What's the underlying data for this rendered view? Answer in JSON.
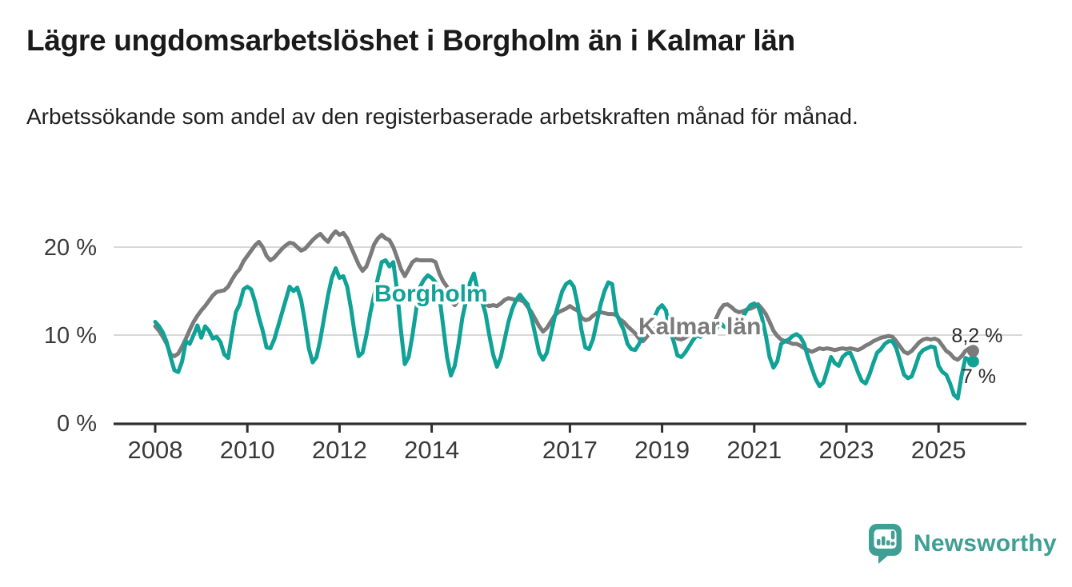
{
  "header": {
    "title": "Lägre ungdomsarbetslöshet i Borgholm än i Kalmar län",
    "subtitle": "Arbetssökande som andel av den registerbaserade arbetskraften månad för månad."
  },
  "footer": {
    "brand": "Newsworthy",
    "brand_icon": "bar-chart-speech-bubble-icon",
    "brand_color": "#3F9F94"
  },
  "chart_data": {
    "type": "line",
    "unit": "%",
    "frequency": "monthly",
    "x_start_year": 2008,
    "x_start_month": 1,
    "x_end_year": 2025,
    "x_end_month": 10,
    "x_tick_years": [
      2008,
      2010,
      2012,
      2014,
      2017,
      2019,
      2021,
      2023,
      2025
    ],
    "y_ticks": [
      {
        "v": 0,
        "label": "0 %"
      },
      {
        "v": 10,
        "label": "10 %"
      },
      {
        "v": 20,
        "label": "20 %"
      }
    ],
    "ylim": [
      0,
      23
    ],
    "grid": "horizontal-light",
    "legend": "inline-annotations",
    "colors": {
      "borgholm": "#10A296",
      "kalmar_lan": "#7B7B7B",
      "axis": "#2f2f2f",
      "gridline": "#d8d8d8",
      "end_label_text": "#2b2b2b"
    },
    "series": [
      {
        "name": "Kalmar län",
        "color": "#7B7B7B",
        "end_label": "8,2 %",
        "end_value": 8.2,
        "values": [
          11.0,
          10.5,
          9.8,
          9.0,
          7.8,
          7.6,
          7.9,
          8.7,
          9.6,
          10.6,
          11.5,
          12.2,
          12.8,
          13.3,
          13.9,
          14.5,
          14.9,
          15.0,
          15.1,
          15.5,
          16.3,
          17.0,
          17.5,
          18.4,
          19.0,
          19.6,
          20.2,
          20.6,
          20.0,
          19.0,
          18.5,
          18.8,
          19.3,
          19.8,
          20.2,
          20.5,
          20.4,
          20.0,
          19.6,
          19.8,
          20.3,
          20.8,
          21.2,
          21.5,
          21.0,
          20.6,
          21.3,
          21.8,
          21.4,
          21.6,
          21.0,
          20.0,
          19.0,
          18.0,
          17.3,
          17.8,
          19.0,
          20.3,
          21.0,
          21.4,
          21.0,
          20.8,
          20.0,
          18.8,
          17.5,
          16.7,
          17.5,
          18.3,
          18.6,
          18.5,
          18.5,
          18.5,
          18.5,
          18.3,
          17.0,
          16.1,
          15.5,
          13.9,
          13.4,
          14.0,
          14.2,
          14.0,
          14.2,
          14.5,
          14.2,
          13.8,
          13.5,
          13.3,
          13.4,
          13.3,
          13.6,
          14.0,
          14.2,
          14.1,
          14.0,
          14.0,
          13.8,
          13.2,
          12.6,
          11.8,
          11.0,
          10.4,
          10.8,
          11.5,
          12.2,
          12.6,
          12.8,
          13.0,
          13.3,
          13.0,
          12.8,
          12.0,
          11.7,
          11.8,
          12.2,
          12.5,
          12.6,
          12.5,
          12.4,
          12.4,
          12.3,
          11.8,
          11.5,
          11.0,
          10.6,
          10.2,
          9.6,
          9.3,
          9.8,
          10.3,
          10.7,
          10.9,
          11.0,
          10.8,
          10.5,
          10.0,
          9.6,
          9.5,
          9.7,
          10.0,
          10.3,
          10.5,
          10.6,
          10.8,
          11.0,
          11.2,
          11.8,
          12.8,
          13.4,
          13.5,
          13.2,
          12.8,
          12.6,
          12.7,
          12.9,
          13.0,
          13.2,
          13.5,
          13.0,
          12.4,
          11.5,
          10.5,
          9.9,
          9.5,
          9.3,
          9.2,
          9.0,
          9.0,
          8.8,
          8.5,
          8.3,
          8.1,
          8.3,
          8.5,
          8.4,
          8.5,
          8.4,
          8.3,
          8.4,
          8.5,
          8.4,
          8.5,
          8.4,
          8.3,
          8.5,
          8.8,
          9.0,
          9.3,
          9.5,
          9.7,
          9.8,
          9.9,
          9.8,
          9.3,
          8.7,
          8.1,
          7.9,
          8.2,
          8.7,
          9.2,
          9.5,
          9.6,
          9.5,
          9.6,
          9.4,
          8.8,
          8.2,
          7.9,
          7.4,
          7.2,
          7.6,
          8.2,
          8.5,
          8.2
        ]
      },
      {
        "name": "Borgholm",
        "color": "#10A296",
        "end_label": "7 %",
        "end_value": 7.0,
        "values": [
          11.5,
          11.0,
          10.3,
          9.2,
          7.5,
          6.0,
          5.8,
          7.0,
          9.3,
          9.0,
          10.0,
          11.1,
          9.7,
          11.0,
          10.5,
          9.6,
          9.8,
          9.2,
          7.8,
          7.4,
          10.1,
          12.6,
          13.5,
          15.2,
          15.5,
          15.2,
          13.8,
          12.0,
          10.5,
          8.6,
          8.5,
          9.5,
          11.0,
          12.5,
          14.0,
          15.5,
          15.0,
          15.4,
          14.0,
          11.5,
          8.5,
          6.9,
          7.5,
          9.5,
          12.0,
          14.5,
          16.5,
          17.6,
          16.5,
          16.7,
          15.5,
          13.0,
          10.0,
          7.6,
          8.0,
          10.0,
          12.5,
          14.5,
          16.5,
          18.3,
          18.5,
          17.8,
          18.3,
          15.0,
          10.5,
          6.7,
          7.5,
          10.0,
          13.0,
          15.5,
          16.3,
          16.8,
          16.5,
          16.0,
          14.5,
          11.0,
          7.5,
          5.4,
          6.5,
          9.0,
          12.0,
          14.0,
          16.0,
          17.0,
          15.0,
          14.0,
          12.5,
          10.0,
          7.8,
          6.4,
          7.5,
          9.5,
          11.5,
          13.0,
          14.0,
          14.6,
          14.0,
          13.5,
          12.0,
          10.0,
          8.0,
          7.2,
          8.0,
          10.0,
          12.0,
          13.5,
          15.0,
          15.8,
          16.1,
          15.5,
          13.5,
          10.6,
          8.6,
          8.4,
          9.5,
          11.5,
          13.5,
          15.0,
          16.0,
          15.8,
          12.6,
          11.5,
          10.6,
          9.0,
          8.4,
          8.3,
          9.0,
          10.0,
          11.0,
          11.5,
          12.0,
          13.0,
          13.4,
          12.8,
          10.5,
          9.3,
          7.7,
          7.5,
          8.0,
          8.7,
          9.4,
          10.0,
          9.8,
          10.2,
          10.4,
          10.0,
          10.5,
          11.5,
          11.0,
          10.8,
          10.5,
          11.0,
          11.5,
          12.0,
          12.8,
          13.4,
          13.6,
          13.3,
          12.0,
          10.0,
          7.5,
          6.3,
          7.0,
          9.0,
          9.3,
          9.5,
          9.9,
          10.1,
          9.8,
          9.0,
          7.5,
          6.2,
          5.0,
          4.2,
          4.6,
          6.0,
          7.5,
          6.8,
          6.5,
          7.5,
          7.9,
          8.0,
          7.0,
          5.8,
          4.8,
          4.5,
          5.5,
          6.8,
          8.0,
          8.4,
          9.0,
          9.3,
          9.3,
          8.5,
          7.0,
          5.5,
          5.1,
          5.3,
          6.5,
          7.8,
          8.3,
          8.5,
          8.7,
          8.6,
          6.5,
          5.8,
          5.5,
          4.5,
          3.2,
          2.8,
          5.4,
          7.4,
          7.2,
          7.0
        ]
      }
    ]
  }
}
